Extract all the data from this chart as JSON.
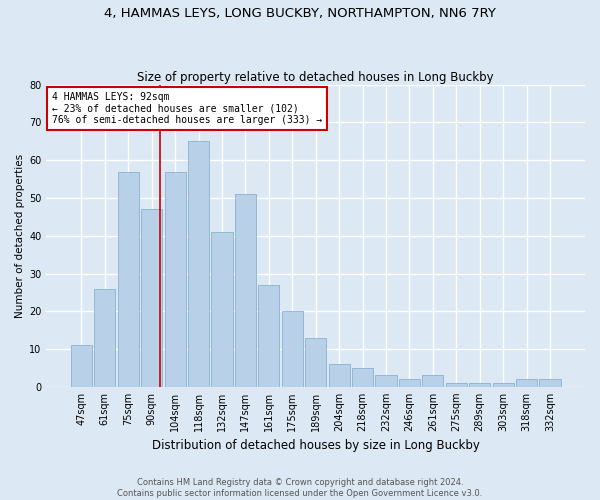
{
  "title": "4, HAMMAS LEYS, LONG BUCKBY, NORTHAMPTON, NN6 7RY",
  "subtitle": "Size of property relative to detached houses in Long Buckby",
  "xlabel": "Distribution of detached houses by size in Long Buckby",
  "ylabel": "Number of detached properties",
  "footer1": "Contains HM Land Registry data © Crown copyright and database right 2024.",
  "footer2": "Contains public sector information licensed under the Open Government Licence v3.0.",
  "categories": [
    "47sqm",
    "61sqm",
    "75sqm",
    "90sqm",
    "104sqm",
    "118sqm",
    "132sqm",
    "147sqm",
    "161sqm",
    "175sqm",
    "189sqm",
    "204sqm",
    "218sqm",
    "232sqm",
    "246sqm",
    "261sqm",
    "275sqm",
    "289sqm",
    "303sqm",
    "318sqm",
    "332sqm"
  ],
  "values": [
    11,
    26,
    57,
    47,
    57,
    65,
    41,
    51,
    27,
    20,
    13,
    6,
    5,
    3,
    2,
    3,
    1,
    1,
    1,
    2,
    2
  ],
  "bar_color": "#b8d0e8",
  "bar_edge_color": "#7aaaca",
  "property_label": "4 HAMMAS LEYS: 92sqm",
  "pct_smaller": 23,
  "n_smaller": 102,
  "pct_larger_semi": 76,
  "n_larger_semi": 333,
  "vline_x": 3.35,
  "annotation_box_color": "#cc0000",
  "ylim": [
    0,
    80
  ],
  "yticks": [
    0,
    10,
    20,
    30,
    40,
    50,
    60,
    70,
    80
  ],
  "bg_color": "#dce8f4",
  "grid_color": "#ffffff",
  "title_fontsize": 9.5,
  "subtitle_fontsize": 8.5,
  "xlabel_fontsize": 8.5,
  "ylabel_fontsize": 7.5,
  "tick_fontsize": 7,
  "annot_fontsize": 7,
  "footer_fontsize": 6
}
